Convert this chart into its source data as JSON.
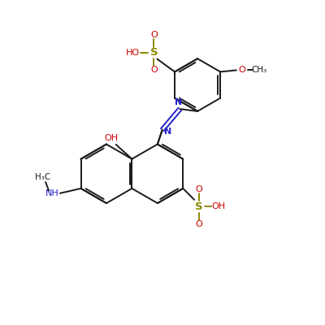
{
  "bg_color": "#ffffff",
  "bond_color": "#1a1a1a",
  "red_color": "#cc0000",
  "blue_color": "#2222cc",
  "olive_color": "#888800",
  "black_color": "#000000",
  "figsize": [
    4.0,
    4.0
  ],
  "dpi": 100,
  "lw": 1.4,
  "fs": 7.5,
  "xlim": [
    0,
    10
  ],
  "ylim": [
    0,
    10
  ]
}
